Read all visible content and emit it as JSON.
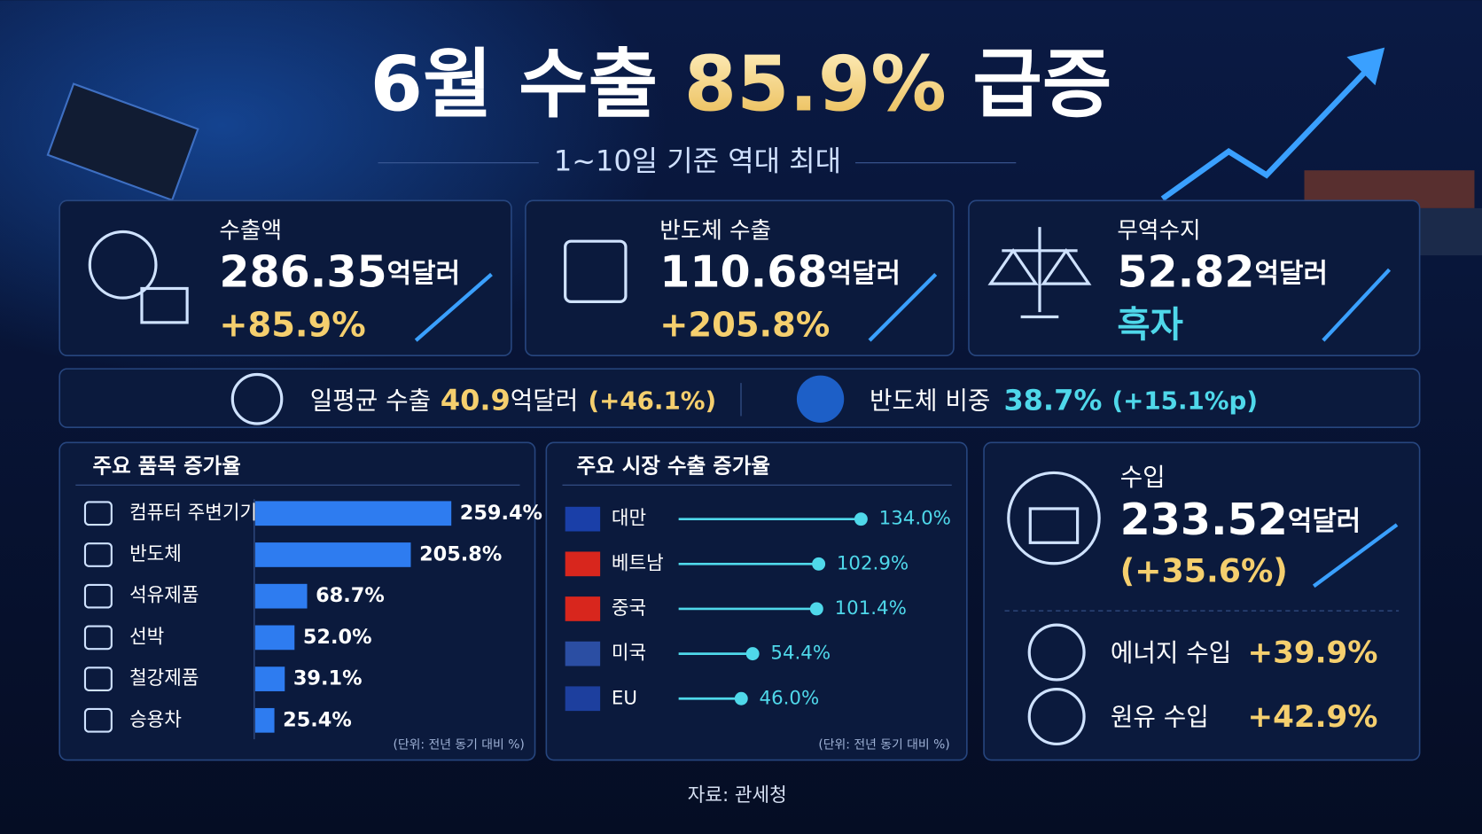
{
  "header": {
    "title_parts": [
      "6월 수출",
      "85.9%",
      "급증"
    ],
    "subtitle": "1~10일 기준 역대 최대"
  },
  "cards": [
    {
      "label": "수출액",
      "value": "286.35",
      "unit": "억달러",
      "change": "+85.9%"
    },
    {
      "label": "반도체 수출",
      "value": "110.68",
      "unit": "억달러",
      "change": "+205.8%"
    },
    {
      "label": "무역수지",
      "value": "52.82",
      "unit": "억달러",
      "status": "흑자"
    }
  ],
  "summary": {
    "daily": {
      "label": "일평균 수출",
      "value": "40.9",
      "unit": "억달러",
      "change": "(+46.1%)"
    },
    "share": {
      "label": "반도체 비중",
      "value": "38.7%",
      "change": "(+15.1%p)"
    }
  },
  "chart_data": [
    {
      "type": "bar",
      "title": "주요 품목 증가율",
      "categories": [
        "컴퓨터 주변기기",
        "반도체",
        "석유제품",
        "선박",
        "철강제품",
        "승용차"
      ],
      "values": [
        259.4,
        205.8,
        68.7,
        52.0,
        39.1,
        25.4
      ],
      "value_labels": [
        "259.4%",
        "205.8%",
        "68.7%",
        "52.0%",
        "39.1%",
        "25.4%"
      ],
      "color": "#2e7cf0",
      "xlim": [
        0,
        260
      ],
      "note": "(단위: 전년 동기 대비 %)"
    },
    {
      "type": "lollipop",
      "title": "주요 시장 수출 증가율",
      "categories": [
        "대만",
        "베트남",
        "중국",
        "미국",
        "EU"
      ],
      "values": [
        134.0,
        102.9,
        101.4,
        54.4,
        46.0
      ],
      "value_labels": [
        "134.0%",
        "102.9%",
        "101.4%",
        "54.4%",
        "46.0%"
      ],
      "color": "#4fd8ea",
      "xlim": [
        0,
        140
      ],
      "note": "(단위: 전년 동기 대비 %)"
    }
  ],
  "imports": {
    "label": "수입",
    "value": "233.52",
    "unit": "억달러",
    "change": "(+35.6%)",
    "items": [
      {
        "label": "에너지 수입",
        "change": "+39.9%"
      },
      {
        "label": "원유 수입",
        "change": "+42.9%"
      }
    ]
  },
  "source": "자료: 관세청"
}
